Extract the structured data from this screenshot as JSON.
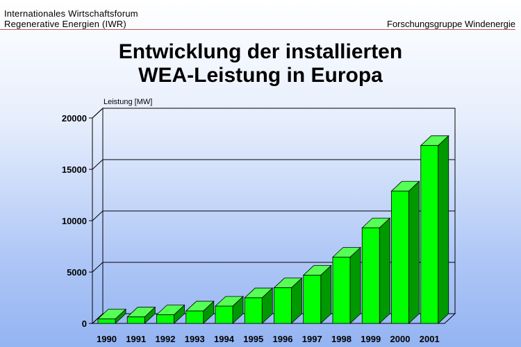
{
  "header": {
    "org_line1": "Internationales Wirtschaftsforum",
    "org_line2": "Regenerative Energien (IWR)",
    "group": "Forschungsgruppe Windenergie"
  },
  "title_line1": "Entwicklung der installierten",
  "title_line2": "WEA-Leistung in Europa",
  "colors": {
    "bar_front": "#00ff00",
    "bar_top": "#55ff55",
    "bar_side": "#009900",
    "rule": "#c0504d"
  },
  "chart_data": {
    "type": "bar",
    "categories": [
      "1990",
      "1991",
      "1992",
      "1993",
      "1994",
      "1995",
      "1996",
      "1997",
      "1998",
      "1999",
      "2000",
      "2001"
    ],
    "values": [
      439,
      629,
      844,
      1211,
      1683,
      2497,
      3469,
      4694,
      6453,
      9307,
      12887,
      17319
    ],
    "ylabel": "Leistung [MW]",
    "ylim": [
      0,
      20000
    ],
    "yticks": [
      "0",
      "5000",
      "10000",
      "15000",
      "20000"
    ],
    "grid": true,
    "three_d": true
  }
}
